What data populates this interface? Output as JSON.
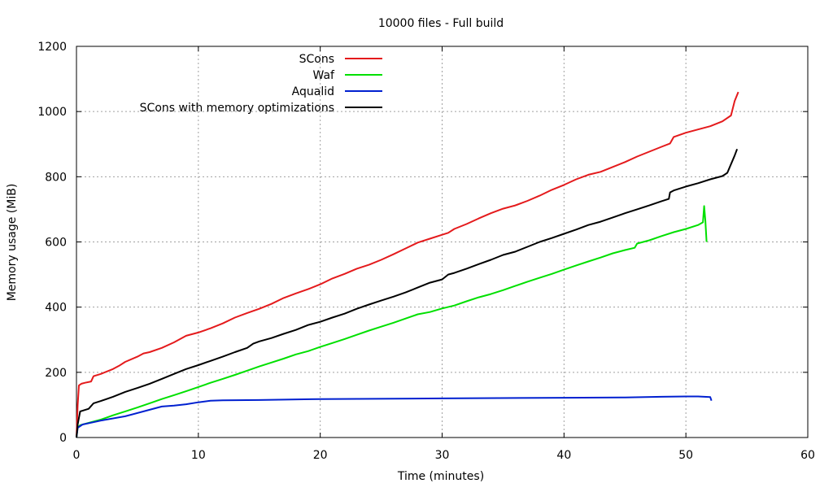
{
  "chart_data": {
    "type": "line",
    "title": "10000 files - Full build",
    "xlabel": "Time (minutes)",
    "ylabel": "Memory usage (MiB)",
    "xlim": [
      0,
      60
    ],
    "ylim": [
      0,
      1200
    ],
    "xticks": [
      0,
      10,
      20,
      30,
      40,
      50,
      60
    ],
    "yticks": [
      0,
      200,
      400,
      600,
      800,
      1000,
      1200
    ],
    "grid": true,
    "legend_position": "top-center",
    "series": [
      {
        "name": "SCons",
        "color": "#e41a1c",
        "points": [
          [
            0,
            0
          ],
          [
            0.1,
            100
          ],
          [
            0.2,
            160
          ],
          [
            0.4,
            165
          ],
          [
            0.7,
            168
          ],
          [
            1.2,
            172
          ],
          [
            1.4,
            188
          ],
          [
            2,
            195
          ],
          [
            3,
            210
          ],
          [
            3.5,
            220
          ],
          [
            4,
            232
          ],
          [
            5,
            248
          ],
          [
            5.5,
            258
          ],
          [
            6,
            262
          ],
          [
            7,
            275
          ],
          [
            8,
            292
          ],
          [
            9,
            312
          ],
          [
            10,
            322
          ],
          [
            11,
            335
          ],
          [
            12,
            350
          ],
          [
            13,
            368
          ],
          [
            14,
            382
          ],
          [
            15,
            395
          ],
          [
            16,
            410
          ],
          [
            17,
            428
          ],
          [
            18,
            442
          ],
          [
            19,
            455
          ],
          [
            20,
            470
          ],
          [
            21,
            488
          ],
          [
            22,
            502
          ],
          [
            23,
            518
          ],
          [
            24,
            530
          ],
          [
            25,
            545
          ],
          [
            26,
            562
          ],
          [
            27,
            580
          ],
          [
            28,
            598
          ],
          [
            29,
            610
          ],
          [
            30,
            622
          ],
          [
            30.5,
            628
          ],
          [
            31,
            640
          ],
          [
            32,
            655
          ],
          [
            33,
            672
          ],
          [
            34,
            688
          ],
          [
            35,
            702
          ],
          [
            36,
            712
          ],
          [
            37,
            726
          ],
          [
            38,
            742
          ],
          [
            39,
            760
          ],
          [
            40,
            775
          ],
          [
            41,
            792
          ],
          [
            42,
            806
          ],
          [
            43,
            815
          ],
          [
            44,
            830
          ],
          [
            45,
            845
          ],
          [
            46,
            862
          ],
          [
            47,
            877
          ],
          [
            48,
            892
          ],
          [
            48.7,
            902
          ],
          [
            49,
            922
          ],
          [
            50,
            935
          ],
          [
            51,
            945
          ],
          [
            52,
            955
          ],
          [
            53,
            970
          ],
          [
            53.7,
            988
          ],
          [
            54,
            1032
          ],
          [
            54.3,
            1060
          ]
        ]
      },
      {
        "name": "Waf",
        "color": "#00e000",
        "points": [
          [
            0,
            0
          ],
          [
            0.1,
            30
          ],
          [
            0.3,
            38
          ],
          [
            1,
            45
          ],
          [
            2,
            55
          ],
          [
            3,
            68
          ],
          [
            4,
            80
          ],
          [
            5,
            92
          ],
          [
            6,
            105
          ],
          [
            7,
            118
          ],
          [
            8,
            130
          ],
          [
            9,
            142
          ],
          [
            10,
            155
          ],
          [
            11,
            168
          ],
          [
            12,
            180
          ],
          [
            13,
            192
          ],
          [
            14,
            205
          ],
          [
            15,
            218
          ],
          [
            16,
            230
          ],
          [
            17,
            242
          ],
          [
            18,
            255
          ],
          [
            19,
            265
          ],
          [
            20,
            278
          ],
          [
            21,
            290
          ],
          [
            22,
            302
          ],
          [
            23,
            315
          ],
          [
            24,
            328
          ],
          [
            25,
            340
          ],
          [
            26,
            352
          ],
          [
            27,
            365
          ],
          [
            28,
            378
          ],
          [
            29,
            385
          ],
          [
            30,
            396
          ],
          [
            31,
            405
          ],
          [
            32,
            418
          ],
          [
            33,
            430
          ],
          [
            34,
            440
          ],
          [
            35,
            452
          ],
          [
            36,
            465
          ],
          [
            37,
            478
          ],
          [
            38,
            490
          ],
          [
            39,
            502
          ],
          [
            40,
            515
          ],
          [
            41,
            528
          ],
          [
            42,
            540
          ],
          [
            43,
            552
          ],
          [
            44,
            565
          ],
          [
            45,
            575
          ],
          [
            45.8,
            582
          ],
          [
            46,
            595
          ],
          [
            47,
            605
          ],
          [
            48,
            618
          ],
          [
            49,
            630
          ],
          [
            50,
            640
          ],
          [
            51,
            652
          ],
          [
            51.4,
            660
          ],
          [
            51.5,
            710
          ],
          [
            51.6,
            665
          ],
          [
            51.7,
            600
          ]
        ]
      },
      {
        "name": "Aqualid",
        "color": "#0020d0",
        "points": [
          [
            0,
            0
          ],
          [
            0.1,
            30
          ],
          [
            0.5,
            40
          ],
          [
            2,
            52
          ],
          [
            4,
            65
          ],
          [
            6,
            85
          ],
          [
            7,
            95
          ],
          [
            8,
            98
          ],
          [
            9,
            102
          ],
          [
            10,
            108
          ],
          [
            11,
            113
          ],
          [
            12,
            114
          ],
          [
            15,
            115
          ],
          [
            20,
            118
          ],
          [
            30,
            120
          ],
          [
            40,
            122
          ],
          [
            45,
            123
          ],
          [
            48,
            125
          ],
          [
            50,
            126
          ],
          [
            51,
            126
          ],
          [
            52,
            124
          ],
          [
            52.1,
            113
          ]
        ]
      },
      {
        "name": "SCons with memory optimizations",
        "color": "#000000",
        "points": [
          [
            0,
            0
          ],
          [
            0.1,
            40
          ],
          [
            0.3,
            80
          ],
          [
            1,
            88
          ],
          [
            1.4,
            105
          ],
          [
            2,
            112
          ],
          [
            3,
            125
          ],
          [
            4,
            140
          ],
          [
            5,
            152
          ],
          [
            6,
            165
          ],
          [
            7,
            180
          ],
          [
            8,
            195
          ],
          [
            9,
            210
          ],
          [
            10,
            222
          ],
          [
            11,
            235
          ],
          [
            12,
            248
          ],
          [
            13,
            262
          ],
          [
            14,
            275
          ],
          [
            14.5,
            288
          ],
          [
            15,
            295
          ],
          [
            16,
            305
          ],
          [
            17,
            318
          ],
          [
            18,
            330
          ],
          [
            19,
            345
          ],
          [
            20,
            355
          ],
          [
            21,
            368
          ],
          [
            22,
            380
          ],
          [
            23,
            395
          ],
          [
            24,
            408
          ],
          [
            25,
            420
          ],
          [
            26,
            432
          ],
          [
            27,
            445
          ],
          [
            28,
            460
          ],
          [
            29,
            475
          ],
          [
            30,
            485
          ],
          [
            30.5,
            500
          ],
          [
            31,
            505
          ],
          [
            32,
            518
          ],
          [
            33,
            532
          ],
          [
            34,
            545
          ],
          [
            35,
            560
          ],
          [
            36,
            570
          ],
          [
            37,
            585
          ],
          [
            38,
            600
          ],
          [
            39,
            612
          ],
          [
            40,
            625
          ],
          [
            41,
            638
          ],
          [
            42,
            652
          ],
          [
            43,
            662
          ],
          [
            44,
            675
          ],
          [
            45,
            688
          ],
          [
            46,
            700
          ],
          [
            47,
            712
          ],
          [
            48,
            725
          ],
          [
            48.6,
            732
          ],
          [
            48.7,
            752
          ],
          [
            49,
            758
          ],
          [
            50,
            770
          ],
          [
            51,
            780
          ],
          [
            52,
            792
          ],
          [
            53,
            802
          ],
          [
            53.4,
            812
          ],
          [
            54,
            865
          ],
          [
            54.2,
            885
          ]
        ]
      }
    ]
  }
}
